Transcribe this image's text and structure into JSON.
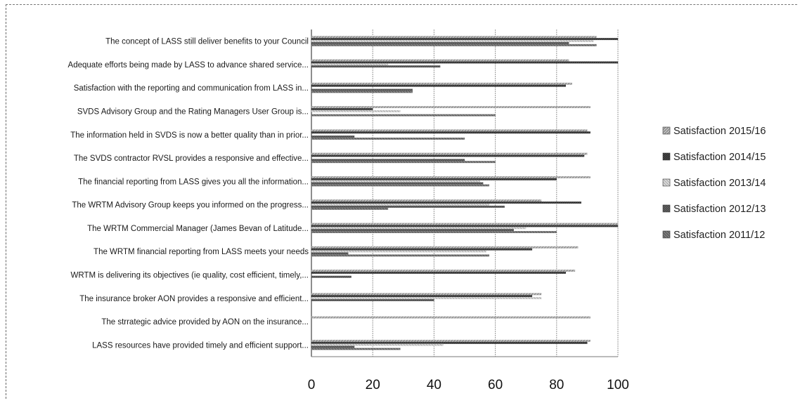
{
  "chart_data": {
    "type": "bar",
    "orientation": "horizontal",
    "title": "",
    "xlabel": "",
    "ylabel": "",
    "xlim": [
      0,
      100
    ],
    "xticks": [
      0,
      20,
      40,
      60,
      80,
      100
    ],
    "grid": "vertical",
    "legend_position": "right",
    "categories": [
      "The concept of LASS still deliver benefits to your Council",
      "Adequate efforts being made by LASS to advance shared service...",
      "Satisfaction with the reporting and communication from LASS in...",
      "SVDS Advisory Group and the Rating Managers User Group is...",
      "The information held in SVDS is now a better quality than in prior...",
      "The SVDS contractor RVSL provides a responsive and effective...",
      "The financial reporting from LASS gives you all the information...",
      "The WRTM Advisory Group keeps you informed on the progress...",
      "The WRTM Commercial Manager (James Bevan of Latitude...",
      "The WRTM financial reporting from LASS meets your needs",
      "WRTM is delivering its objectives (ie quality, cost efficient, timely,...",
      "The insurance broker AON provides a responsive and efficient...",
      "The strrategic advice provided by AON on the insurance...",
      "LASS resources have provided timely and efficient support..."
    ],
    "series": [
      {
        "name": "Satisfaction 2015/16",
        "color": "#a8a8a8",
        "values": [
          93,
          84,
          85,
          91,
          90,
          90,
          91,
          75,
          100,
          87,
          86,
          75,
          91,
          91
        ]
      },
      {
        "name": "Satisfaction 2014/15",
        "color": "#3a3a3a",
        "values": [
          100,
          100,
          83,
          20,
          91,
          89,
          80,
          88,
          100,
          72,
          83,
          72,
          0,
          90
        ]
      },
      {
        "name": "Satisfaction 2013/14",
        "color": "#c8c8c8",
        "values": [
          92,
          25,
          0,
          29,
          0,
          0,
          55,
          58,
          70,
          57,
          0,
          75,
          0,
          43
        ]
      },
      {
        "name": "Satisfaction 2012/13",
        "color": "#555555",
        "values": [
          84,
          42,
          33,
          0,
          14,
          50,
          56,
          63,
          66,
          12,
          13,
          40,
          0,
          14
        ]
      },
      {
        "name": "Satisfaction 2011/12",
        "color": "#7a7a7a",
        "values": [
          93,
          0,
          33,
          60,
          50,
          60,
          58,
          25,
          80,
          58,
          0,
          0,
          0,
          29
        ]
      }
    ]
  }
}
